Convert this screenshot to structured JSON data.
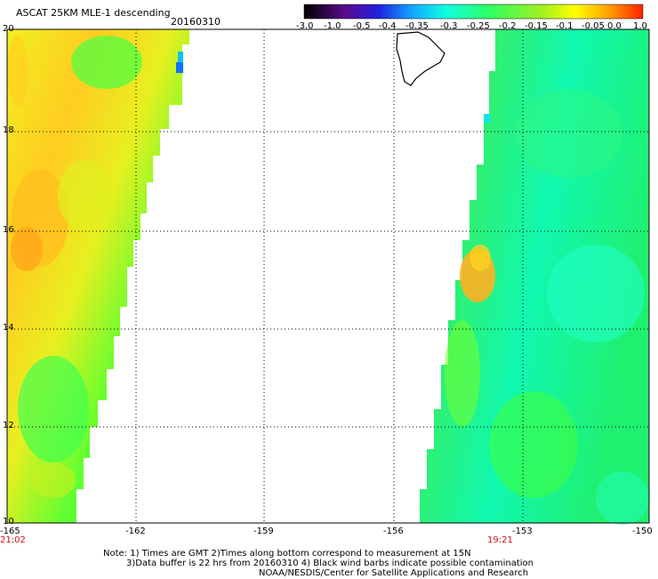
{
  "title": "ASCAT 25KM MLE-1 descending",
  "date": "20160310",
  "colorbar": {
    "labels": [
      "-3.0",
      "-1.0",
      "-0.5",
      "-0.4",
      "-0.35",
      "-0.3",
      "-0.25",
      "-0.2",
      "-0.15",
      "-0.1",
      "-0.05",
      "0.0",
      "1.0"
    ],
    "colors": [
      "#2a0030",
      "#5a0a8c",
      "#2020e0",
      "#1060ff",
      "#10a8ff",
      "#10e0f0",
      "#10ffc0",
      "#30ff60",
      "#60ff20",
      "#c0f020",
      "#ffe000",
      "#ffa000",
      "#ff2000"
    ]
  },
  "map": {
    "lat_labels": [
      "20",
      "18",
      "16",
      "14",
      "12",
      "10"
    ],
    "lon_labels": [
      "-165",
      "-162",
      "-159",
      "-156",
      "-153",
      "-150"
    ],
    "time_left": "21:02",
    "time_right": "19:21"
  },
  "notes": {
    "line1": "Note: 1) Times are GMT 2)Times along bottom correspond to measurement at 15N",
    "line2": "3)Data buffer is 22 hrs from 20160310 4) Black wind barbs indicate possible contamination",
    "line3": "NOAA/NESDIS/Center for Satellite Applications and Research"
  }
}
